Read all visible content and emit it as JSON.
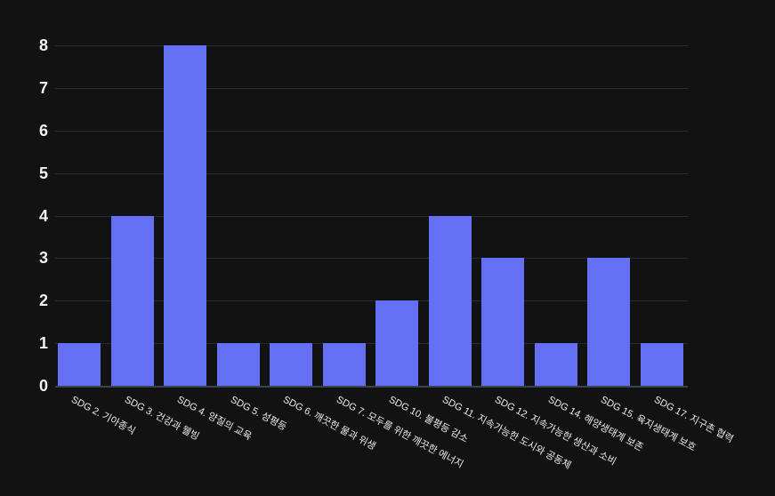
{
  "chart_data": {
    "type": "bar",
    "title": "",
    "xlabel": "",
    "ylabel": "",
    "categories": [
      "SDG 2. 기아종식",
      "SDG 3. 건강과 웰빙",
      "SDG 4. 양질의 교육",
      "SDG 5. 성평등",
      "SDG 6. 깨끗한 물과 위생",
      "SDG 7. 모두를 위한 깨끗한 에너지",
      "SDG 10. 불평등 감소",
      "SDG 11. 지속가능한 도시와 공동체",
      "SDG 12. 지속가능한 생산과 소비",
      "SDG 14. 해양생태계 보존",
      "SDG 15. 육지생태계 보호",
      "SDG 17. 지구촌 협력"
    ],
    "values": [
      1,
      4,
      8,
      1,
      1,
      1,
      2,
      4,
      3,
      1,
      3,
      1
    ],
    "ylim": [
      0,
      8
    ],
    "yticks": [
      0,
      1,
      2,
      3,
      4,
      5,
      6,
      7,
      8
    ],
    "grid": true,
    "legend": false,
    "x_tick_rotation_deg": 28,
    "colors": {
      "background": "#121212",
      "bar": "#6470F3",
      "gridline": "#262b35",
      "axis_line": "#3c434f",
      "y_tick_label": "#f2f2f2",
      "x_tick_label": "#ececec"
    }
  }
}
